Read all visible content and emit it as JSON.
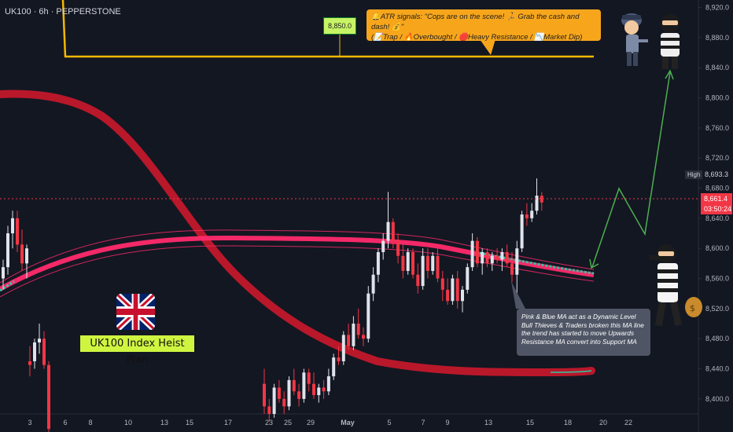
{
  "symbol": {
    "title": "UK100 · 6h · PEPPERSTONE"
  },
  "price_axis": {
    "labels": [
      "8,920.0",
      "8,880.0",
      "8,840.0",
      "8,800.0",
      "8,760.0",
      "8,720.0",
      "8,680.0",
      "8,640.0",
      "8,600.0",
      "8,560.0",
      "8,520.0",
      "8,480.0",
      "8,440.0",
      "8,400.0"
    ],
    "high_label": "High",
    "high_value": "8,693.3",
    "last_price": "8,661.4",
    "countdown": "03:50:24"
  },
  "time_axis": {
    "labels": [
      "3",
      "6",
      "8",
      "10",
      "13",
      "15",
      "17",
      "23",
      "25",
      "29",
      "May",
      "5",
      "7",
      "9",
      "13",
      "15",
      "18",
      "20",
      "22"
    ]
  },
  "annotations": {
    "target_level": "8,850.0",
    "callout_line1": "🔔ATR signals: \"Cops are on the scene! 🏃 Grab the cash and dash! 💰\"",
    "callout_line2": "(📝Trap / 🔥Overbought / 🛑Heavy Resistance / 📉Market Dip)",
    "note": "Pink & Blue MA act as a Dynamic Level Bull Thieves & Traders broken this MA line the trend has started to move Upwards Resistance MA convert into Support MA",
    "plan_label": "UK100 Index Heist Plan"
  },
  "colors": {
    "background": "#131722",
    "bull": "#e0e3eb",
    "bear": "#f23645",
    "target_line": "#f5b800",
    "projection": "#4caf50",
    "red_ma": "#c2182b",
    "pink_ma": "#ff2a6d",
    "blue_ma": "#2ec9a7"
  },
  "chart_data": {
    "type": "candlestick",
    "symbol": "UK100",
    "interval": "6h",
    "ylim": [
      8380,
      8930
    ],
    "candles": [
      {
        "o": 8560,
        "h": 8585,
        "l": 8545,
        "c": 8575
      },
      {
        "o": 8575,
        "h": 8630,
        "l": 8565,
        "c": 8620
      },
      {
        "o": 8620,
        "h": 8650,
        "l": 8600,
        "c": 8640
      },
      {
        "o": 8640,
        "h": 8650,
        "l": 8595,
        "c": 8605
      },
      {
        "o": 8605,
        "h": 8625,
        "l": 8570,
        "c": 8580
      },
      {
        "o": 8580,
        "h": 8605,
        "l": 8560,
        "c": 8600
      },
      {
        "o": 8450,
        "h": 8470,
        "l": 8430,
        "c": 8445
      },
      {
        "o": 8450,
        "h": 8480,
        "l": 8440,
        "c": 8475
      },
      {
        "o": 8475,
        "h": 8500,
        "l": 8460,
        "c": 8480
      },
      {
        "o": 8480,
        "h": 8490,
        "l": 8440,
        "c": 8445
      },
      {
        "o": 8445,
        "h": 8450,
        "l": 8350,
        "c": 8360
      },
      {
        "o": 8420,
        "h": 8440,
        "l": 8380,
        "c": 8390
      },
      {
        "o": 8390,
        "h": 8400,
        "l": 8370,
        "c": 8380
      },
      {
        "o": 8380,
        "h": 8420,
        "l": 8375,
        "c": 8415
      },
      {
        "o": 8415,
        "h": 8425,
        "l": 8395,
        "c": 8400
      },
      {
        "o": 8400,
        "h": 8410,
        "l": 8380,
        "c": 8390
      },
      {
        "o": 8390,
        "h": 8430,
        "l": 8385,
        "c": 8425
      },
      {
        "o": 8425,
        "h": 8440,
        "l": 8405,
        "c": 8410
      },
      {
        "o": 8410,
        "h": 8420,
        "l": 8390,
        "c": 8400
      },
      {
        "o": 8400,
        "h": 8440,
        "l": 8395,
        "c": 8435
      },
      {
        "o": 8435,
        "h": 8440,
        "l": 8410,
        "c": 8420
      },
      {
        "o": 8420,
        "h": 8435,
        "l": 8400,
        "c": 8405
      },
      {
        "o": 8405,
        "h": 8420,
        "l": 8395,
        "c": 8415
      },
      {
        "o": 8415,
        "h": 8425,
        "l": 8400,
        "c": 8410
      },
      {
        "o": 8410,
        "h": 8440,
        "l": 8405,
        "c": 8430
      },
      {
        "o": 8430,
        "h": 8460,
        "l": 8425,
        "c": 8455
      },
      {
        "o": 8455,
        "h": 8470,
        "l": 8445,
        "c": 8450
      },
      {
        "o": 8450,
        "h": 8490,
        "l": 8445,
        "c": 8485
      },
      {
        "o": 8485,
        "h": 8500,
        "l": 8465,
        "c": 8470
      },
      {
        "o": 8470,
        "h": 8510,
        "l": 8465,
        "c": 8500
      },
      {
        "o": 8500,
        "h": 8520,
        "l": 8480,
        "c": 8485
      },
      {
        "o": 8485,
        "h": 8495,
        "l": 8470,
        "c": 8480
      },
      {
        "o": 8480,
        "h": 8550,
        "l": 8475,
        "c": 8540
      },
      {
        "o": 8540,
        "h": 8575,
        "l": 8530,
        "c": 8565
      },
      {
        "o": 8565,
        "h": 8600,
        "l": 8555,
        "c": 8595
      },
      {
        "o": 8595,
        "h": 8620,
        "l": 8585,
        "c": 8610
      },
      {
        "o": 8610,
        "h": 8675,
        "l": 8600,
        "c": 8635
      },
      {
        "o": 8635,
        "h": 8640,
        "l": 8600,
        "c": 8610
      },
      {
        "o": 8610,
        "h": 8620,
        "l": 8580,
        "c": 8590
      },
      {
        "o": 8590,
        "h": 8605,
        "l": 8560,
        "c": 8570
      },
      {
        "o": 8570,
        "h": 8600,
        "l": 8565,
        "c": 8595
      },
      {
        "o": 8595,
        "h": 8600,
        "l": 8560,
        "c": 8565
      },
      {
        "o": 8565,
        "h": 8580,
        "l": 8540,
        "c": 8550
      },
      {
        "o": 8550,
        "h": 8600,
        "l": 8545,
        "c": 8590
      },
      {
        "o": 8590,
        "h": 8600,
        "l": 8560,
        "c": 8570
      },
      {
        "o": 8570,
        "h": 8595,
        "l": 8565,
        "c": 8590
      },
      {
        "o": 8590,
        "h": 8600,
        "l": 8555,
        "c": 8560
      },
      {
        "o": 8560,
        "h": 8570,
        "l": 8530,
        "c": 8545
      },
      {
        "o": 8545,
        "h": 8560,
        "l": 8525,
        "c": 8530
      },
      {
        "o": 8530,
        "h": 8565,
        "l": 8525,
        "c": 8560
      },
      {
        "o": 8560,
        "h": 8570,
        "l": 8520,
        "c": 8530
      },
      {
        "o": 8530,
        "h": 8550,
        "l": 8515,
        "c": 8545
      },
      {
        "o": 8545,
        "h": 8580,
        "l": 8540,
        "c": 8575
      },
      {
        "o": 8575,
        "h": 8620,
        "l": 8570,
        "c": 8610
      },
      {
        "o": 8610,
        "h": 8615,
        "l": 8575,
        "c": 8580
      },
      {
        "o": 8580,
        "h": 8600,
        "l": 8565,
        "c": 8595
      },
      {
        "o": 8595,
        "h": 8600,
        "l": 8575,
        "c": 8580
      },
      {
        "o": 8580,
        "h": 8595,
        "l": 8570,
        "c": 8590
      },
      {
        "o": 8590,
        "h": 8600,
        "l": 8580,
        "c": 8585
      },
      {
        "o": 8585,
        "h": 8600,
        "l": 8570,
        "c": 8595
      },
      {
        "o": 8595,
        "h": 8605,
        "l": 8575,
        "c": 8580
      },
      {
        "o": 8580,
        "h": 8595,
        "l": 8555,
        "c": 8565
      },
      {
        "o": 8565,
        "h": 8610,
        "l": 8530,
        "c": 8600
      },
      {
        "o": 8600,
        "h": 8650,
        "l": 8595,
        "c": 8645
      },
      {
        "o": 8645,
        "h": 8660,
        "l": 8630,
        "c": 8640
      },
      {
        "o": 8640,
        "h": 8660,
        "l": 8635,
        "c": 8650
      },
      {
        "o": 8650,
        "h": 8693,
        "l": 8645,
        "c": 8670
      },
      {
        "o": 8670,
        "h": 8675,
        "l": 8650,
        "c": 8661
      }
    ],
    "target_level": 8850.0,
    "last_price": 8661.4
  }
}
